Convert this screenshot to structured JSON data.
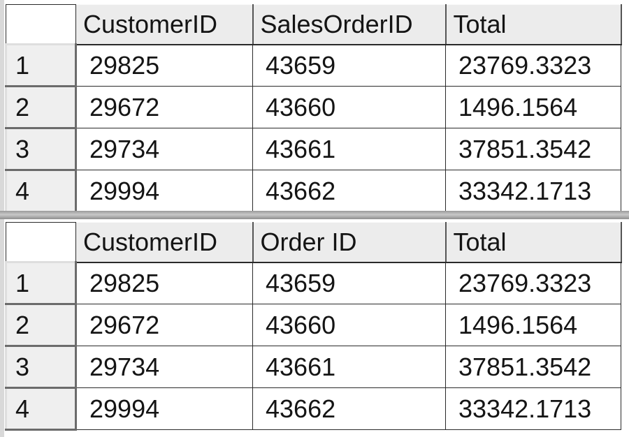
{
  "grids": [
    {
      "columns": [
        "CustomerID",
        "SalesOrderID",
        "Total"
      ],
      "rows": [
        {
          "num": "1",
          "customer_id": "29825",
          "order_id": "43659",
          "total": "23769.3323"
        },
        {
          "num": "2",
          "customer_id": "29672",
          "order_id": "43660",
          "total": "1496.1564"
        },
        {
          "num": "3",
          "customer_id": "29734",
          "order_id": "43661",
          "total": "37851.3542"
        },
        {
          "num": "4",
          "customer_id": "29994",
          "order_id": "43662",
          "total": "33342.1713"
        }
      ]
    },
    {
      "columns": [
        "CustomerID",
        "Order ID",
        "Total"
      ],
      "rows": [
        {
          "num": "1",
          "customer_id": "29825",
          "order_id": "43659",
          "total": "23769.3323"
        },
        {
          "num": "2",
          "customer_id": "29672",
          "order_id": "43660",
          "total": "1496.1564"
        },
        {
          "num": "3",
          "customer_id": "29734",
          "order_id": "43661",
          "total": "37851.3542"
        },
        {
          "num": "4",
          "customer_id": "29994",
          "order_id": "43662",
          "total": "33342.1713"
        }
      ]
    }
  ]
}
